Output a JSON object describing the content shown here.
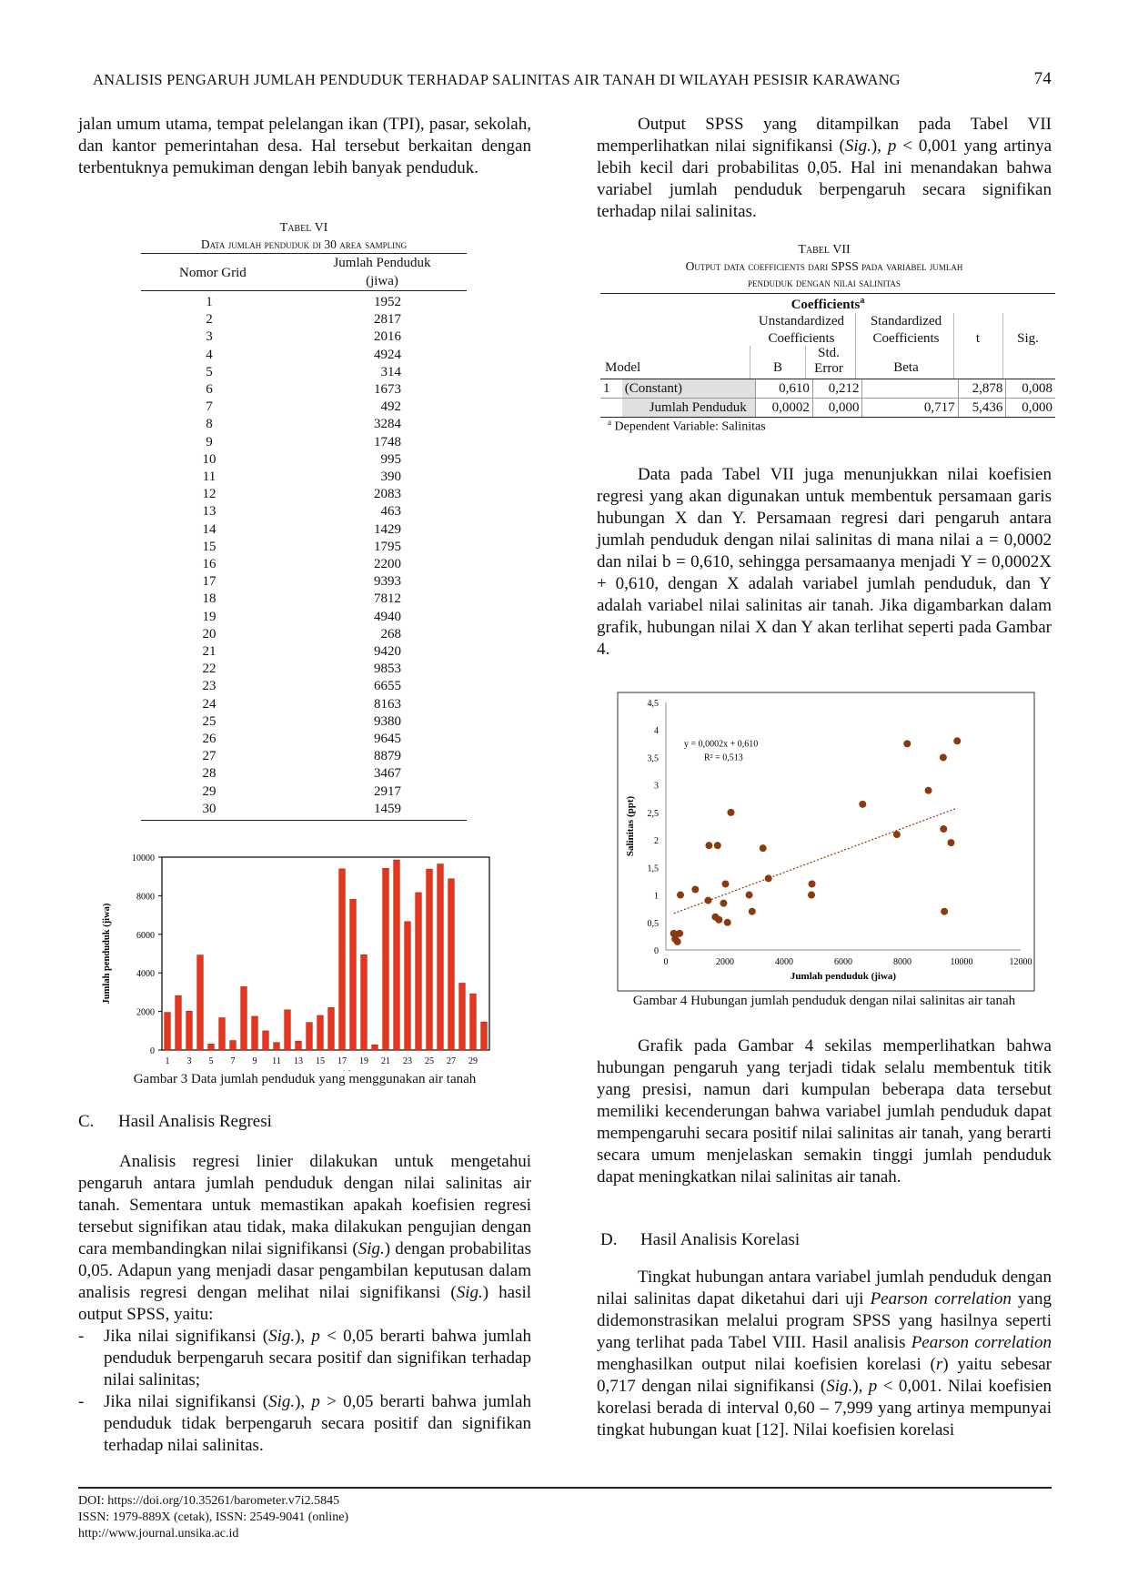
{
  "header": {
    "title": "ANALISIS PENGARUH JUMLAH PENDUDUK TERHADAP SALINITAS AIR TANAH DI WILAYAH PESISIR KARAWANG",
    "page_number": "74"
  },
  "left": {
    "para1": "jalan umum utama, tempat pelelangan ikan (TPI), pasar, sekolah, dan kantor pemerintahan desa. Hal tersebut berkaitan dengan terbentuknya pemukiman dengan lebih banyak penduduk.",
    "table6": {
      "label": "Tabel VI",
      "title": "Data jumlah penduduk di 30 area sampling",
      "col1": "Nomor Grid",
      "col2_line1": "Jumlah Penduduk",
      "col2_line2": "(jiwa)"
    },
    "fig3_caption": "Gambar 3 Data jumlah penduduk yang menggunakan air tanah",
    "section_c": {
      "letter": "C.",
      "title": "Hasil Analisis Regresi"
    },
    "para2_a": "Analisis regresi linier dilakukan untuk mengetahui pengaruh antara jumlah penduduk dengan nilai salinitas air tanah. Sementara untuk memastikan apakah koefisien regresi tersebut signifikan atau tidak, maka dilakukan pengujian dengan cara membandingkan nilai signifikansi (",
    "sig_italic": "Sig.",
    "para2_b": ") dengan probabilitas 0,05. Adapun yang menjadi dasar pengambilan keputusan dalam analisis regresi dengan melihat nilai signifikansi (",
    "para2_c": ") hasil output SPSS, yaitu:",
    "bullet1_a": "Jika nilai signifikansi (",
    "bullet1_b": "), ",
    "p_italic": "p",
    "bullet1_c": " < 0,05 berarti bahwa jumlah penduduk berpengaruh secara positif dan signifikan terhadap nilai salinitas;",
    "bullet2_a": "Jika nilai signifikansi (",
    "bullet2_b": "), ",
    "bullet2_c": " > 0,05 berarti bahwa jumlah penduduk tidak berpengaruh secara positif dan signifikan terhadap nilai salinitas.",
    "dash": "-"
  },
  "right": {
    "para1_a": "Output SPSS yang ditampilkan pada Tabel VII memperlihatkan nilai signifikansi (",
    "para1_b": "), ",
    "para1_c": " < 0,001 yang artinya lebih kecil dari probabilitas 0,05. Hal ini menandakan bahwa variabel jumlah penduduk berpengaruh secara signifikan terhadap nilai salinitas.",
    "table7": {
      "label": "Tabel VII",
      "title_line1": "Output data coefficients dari SPSS pada variabel jumlah",
      "title_line2": "penduduk dengan nilai salinitas",
      "coefficients": "Coefficients",
      "sup_a": "a",
      "unstd_1": "Unstandardized",
      "unstd_2": "Coefficients",
      "std_1": "Standardized",
      "std_2": "Coefficients",
      "t": "t",
      "sig": "Sig.",
      "model": "Model",
      "b": "B",
      "stderr_1": "Std.",
      "stderr_2": "Error",
      "beta": "Beta",
      "row1": {
        "num": "1",
        "name": "(Constant)",
        "b": "0,610",
        "se": "0,212",
        "beta": "",
        "t": "2,878",
        "sig": "0,008"
      },
      "row2": {
        "num": "",
        "name": "Jumlah Penduduk",
        "b": "0,0002",
        "se": "0,000",
        "beta": "0,717",
        "t": "5,436",
        "sig": "0,000"
      },
      "note": "Dependent Variable: Salinitas"
    },
    "para2": "Data pada Tabel VII juga menunjukkan nilai koefisien regresi yang akan digunakan untuk membentuk persamaan garis hubungan X dan Y. Persamaan regresi dari pengaruh antara jumlah penduduk dengan nilai salinitas di mana nilai a = 0,0002 dan nilai b = 0,610, sehingga persamaanya menjadi Y = 0,0002X + 0,610, dengan X adalah variabel jumlah penduduk, dan Y adalah variabel nilai salinitas air tanah. Jika digambarkan dalam grafik, hubungan nilai X dan Y akan terlihat seperti pada Gambar 4.",
    "fig4_caption": "Gambar 4 Hubungan jumlah penduduk dengan nilai salinitas air tanah",
    "para3": "Grafik pada Gambar 4 sekilas memperlihatkan bahwa hubungan pengaruh yang terjadi tidak selalu membentuk titik yang presisi, namun dari kumpulan beberapa data tersebut memiliki kecenderungan bahwa variabel jumlah penduduk dapat mempengaruhi secara positif nilai salinitas air tanah, yang berarti secara umum menjelaskan semakin tinggi jumlah penduduk dapat meningkatkan nilai salinitas air tanah.",
    "section_d": {
      "letter": "D.",
      "title": "Hasil Analisis Korelasi"
    },
    "para4_a": "Tingkat hubungan antara variabel jumlah penduduk dengan nilai salinitas dapat diketahui dari uji ",
    "pearson_italic": "Pearson correlation",
    "para4_b": " yang didemonstrasikan melalui program SPSS yang hasilnya seperti yang terlihat pada Tabel VIII. Hasil analisis ",
    "para4_c": " menghasilkan output nilai koefisien korelasi (",
    "r_italic": "r",
    "para4_d": ") yaitu sebesar 0,717 dengan nilai signifikansi (",
    "para4_e": "), ",
    "para4_f": " < 0,001. Nilai koefisien korelasi berada di interval 0,60 – 7,999 yang artinya mempunyai tingkat hubungan kuat [12]. Nilai koefisien korelasi"
  },
  "footer": {
    "doi": "DOI: https://doi.org/10.35261/barometer.v7i2.5845",
    "issn": "ISSN: 1979-889X (cetak), ISSN: 2549-9041 (online)",
    "url": "http://www.journal.unsika.ac.id"
  },
  "chart_data": [
    {
      "type": "table",
      "columns": [
        "Nomor Grid",
        "Jumlah Penduduk (jiwa)"
      ],
      "rows": [
        [
          "1",
          "1952"
        ],
        [
          "2",
          "2817"
        ],
        [
          "3",
          "2016"
        ],
        [
          "4",
          "4924"
        ],
        [
          "5",
          "314"
        ],
        [
          "6",
          "1673"
        ],
        [
          "7",
          "492"
        ],
        [
          "8",
          "3284"
        ],
        [
          "9",
          "1748"
        ],
        [
          "10",
          "995"
        ],
        [
          "11",
          "390"
        ],
        [
          "12",
          "2083"
        ],
        [
          "13",
          "463"
        ],
        [
          "14",
          "1429"
        ],
        [
          "15",
          "1795"
        ],
        [
          "16",
          "2200"
        ],
        [
          "17",
          "9393"
        ],
        [
          "18",
          "7812"
        ],
        [
          "19",
          "4940"
        ],
        [
          "20",
          "268"
        ],
        [
          "21",
          "9420"
        ],
        [
          "22",
          "9853"
        ],
        [
          "23",
          "6655"
        ],
        [
          "24",
          "8163"
        ],
        [
          "25",
          "9380"
        ],
        [
          "26",
          "9645"
        ],
        [
          "27",
          "8879"
        ],
        [
          "28",
          "3467"
        ],
        [
          "29",
          "2917"
        ],
        [
          "30",
          "1459"
        ]
      ]
    },
    {
      "type": "bar",
      "xlabel": "Nomor Grid",
      "ylabel": "Jumlah penduduk (jiwa)",
      "categories": [
        1,
        2,
        3,
        4,
        5,
        6,
        7,
        8,
        9,
        10,
        11,
        12,
        13,
        14,
        15,
        16,
        17,
        18,
        19,
        20,
        21,
        22,
        23,
        24,
        25,
        26,
        27,
        28,
        29,
        30
      ],
      "x_tick_labels": [
        "1",
        "3",
        "5",
        "7",
        "9",
        "11",
        "13",
        "15",
        "17",
        "19",
        "21",
        "23",
        "25",
        "27",
        "29"
      ],
      "y_ticks": [
        "0",
        "2000",
        "4000",
        "6000",
        "8000",
        "10000"
      ],
      "values": [
        1952,
        2817,
        2016,
        4924,
        314,
        1673,
        492,
        3284,
        1748,
        995,
        390,
        2083,
        463,
        1429,
        1795,
        2200,
        9393,
        7812,
        4940,
        268,
        9420,
        9853,
        6655,
        8163,
        9380,
        9645,
        8879,
        3467,
        2917,
        1459
      ],
      "ylim": [
        0,
        10000
      ],
      "bar_color": "#e8341c"
    },
    {
      "type": "scatter",
      "xlabel": "Jumlah penduduk (jiwa)",
      "ylabel": "Salinitas (ppt)",
      "xlim": [
        0,
        12000
      ],
      "ylim": [
        0,
        4.5
      ],
      "x_ticks": [
        "0",
        "2000",
        "4000",
        "6000",
        "8000",
        "10000",
        "12000"
      ],
      "y_ticks": [
        "0",
        "0,5",
        "1",
        "1,5",
        "2",
        "2,5",
        "3",
        "3,5",
        "4",
        "4,5"
      ],
      "equation": "y = 0,0002x + 0,610",
      "r2": "R² = 0,513",
      "trendline": {
        "slope": 0.0002,
        "intercept": 0.61
      },
      "point_color": "#8b3a0f",
      "points": [
        [
          268,
          0.3
        ],
        [
          314,
          0.2
        ],
        [
          390,
          0.15
        ],
        [
          463,
          0.3
        ],
        [
          492,
          1.0
        ],
        [
          995,
          1.1
        ],
        [
          1429,
          0.9
        ],
        [
          1459,
          1.9
        ],
        [
          1673,
          0.6
        ],
        [
          1748,
          1.9
        ],
        [
          1795,
          0.55
        ],
        [
          1952,
          0.85
        ],
        [
          2016,
          1.2
        ],
        [
          2083,
          0.5
        ],
        [
          2200,
          2.5
        ],
        [
          2817,
          1.0
        ],
        [
          2917,
          0.7
        ],
        [
          3284,
          1.85
        ],
        [
          3467,
          1.3
        ],
        [
          4924,
          1.0
        ],
        [
          4940,
          1.2
        ],
        [
          6655,
          2.65
        ],
        [
          7812,
          2.1
        ],
        [
          8163,
          3.75
        ],
        [
          8879,
          2.9
        ],
        [
          9380,
          3.5
        ],
        [
          9393,
          2.2
        ],
        [
          9420,
          0.7
        ],
        [
          9645,
          1.95
        ],
        [
          9853,
          3.8
        ]
      ]
    }
  ]
}
